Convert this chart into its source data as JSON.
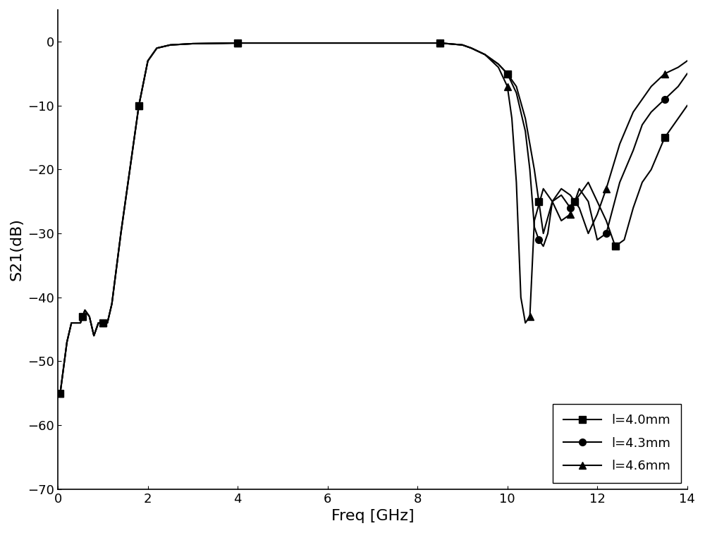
{
  "title": "",
  "xlabel": "Freq [GHz]",
  "ylabel": "S21(dB)",
  "xlim": [
    0,
    14
  ],
  "ylim": [
    -70,
    5
  ],
  "yticks": [
    0,
    -10,
    -20,
    -30,
    -40,
    -50,
    -60,
    -70
  ],
  "xticks": [
    0,
    2,
    4,
    6,
    8,
    10,
    12,
    14
  ],
  "line_color": "#000000",
  "background_color": "#ffffff",
  "series": [
    {
      "label": "l=4.0mm",
      "marker": "s",
      "freq": [
        0.05,
        0.2,
        0.3,
        0.4,
        0.5,
        0.55,
        0.6,
        0.7,
        0.8,
        0.9,
        1.0,
        1.1,
        1.2,
        1.4,
        1.6,
        1.8,
        2.0,
        2.2,
        2.5,
        3.0,
        4.0,
        5.0,
        6.0,
        7.0,
        8.0,
        8.5,
        9.0,
        9.2,
        9.5,
        9.8,
        10.0,
        10.2,
        10.4,
        10.5,
        10.6,
        10.7,
        10.8,
        11.0,
        11.2,
        11.4,
        11.5,
        11.6,
        11.8,
        12.0,
        12.2,
        12.4,
        12.6,
        12.8,
        13.0,
        13.2,
        13.5,
        13.8,
        14.0
      ],
      "s21": [
        -55,
        -47,
        -44,
        -44,
        -44,
        -43,
        -42,
        -43,
        -46,
        -44,
        -44,
        -44,
        -41,
        -30,
        -20,
        -10,
        -3,
        -1,
        -0.5,
        -0.3,
        -0.2,
        -0.2,
        -0.2,
        -0.2,
        -0.2,
        -0.2,
        -0.5,
        -1,
        -2,
        -3.5,
        -5,
        -7,
        -12,
        -16,
        -20,
        -25,
        -30,
        -25,
        -23,
        -24,
        -25,
        -24,
        -22,
        -25,
        -28,
        -32,
        -31,
        -26,
        -22,
        -20,
        -15,
        -12,
        -10
      ]
    },
    {
      "label": "l=4.3mm",
      "marker": "o",
      "freq": [
        0.05,
        0.2,
        0.3,
        0.4,
        0.5,
        0.55,
        0.6,
        0.7,
        0.8,
        0.9,
        1.0,
        1.1,
        1.2,
        1.4,
        1.6,
        1.8,
        2.0,
        2.2,
        2.5,
        3.0,
        4.0,
        5.0,
        6.0,
        7.0,
        8.0,
        8.5,
        9.0,
        9.2,
        9.5,
        9.8,
        10.0,
        10.2,
        10.4,
        10.5,
        10.6,
        10.7,
        10.8,
        10.9,
        11.0,
        11.2,
        11.4,
        11.5,
        11.6,
        11.8,
        12.0,
        12.2,
        12.5,
        12.8,
        13.0,
        13.2,
        13.5,
        13.8,
        14.0
      ],
      "s21": [
        -55,
        -47,
        -44,
        -44,
        -44,
        -43,
        -42,
        -43,
        -46,
        -44,
        -44,
        -44,
        -41,
        -30,
        -20,
        -10,
        -3,
        -1,
        -0.5,
        -0.3,
        -0.2,
        -0.2,
        -0.2,
        -0.2,
        -0.2,
        -0.2,
        -0.5,
        -1,
        -2,
        -3.5,
        -5,
        -8,
        -14,
        -20,
        -29,
        -31,
        -32,
        -30,
        -25,
        -24,
        -26,
        -25,
        -23,
        -25,
        -31,
        -30,
        -22,
        -17,
        -13,
        -11,
        -9,
        -7,
        -5
      ]
    },
    {
      "label": "l=4.6mm",
      "marker": "^",
      "freq": [
        0.05,
        0.2,
        0.3,
        0.4,
        0.5,
        0.55,
        0.6,
        0.7,
        0.8,
        0.9,
        1.0,
        1.1,
        1.2,
        1.4,
        1.6,
        1.8,
        2.0,
        2.2,
        2.5,
        3.0,
        4.0,
        5.0,
        6.0,
        7.0,
        8.0,
        8.5,
        9.0,
        9.2,
        9.5,
        9.8,
        10.0,
        10.1,
        10.2,
        10.3,
        10.4,
        10.5,
        10.6,
        10.8,
        11.0,
        11.2,
        11.4,
        11.5,
        11.6,
        11.8,
        12.0,
        12.2,
        12.5,
        12.8,
        13.0,
        13.2,
        13.5,
        13.8,
        14.0
      ],
      "s21": [
        -55,
        -47,
        -44,
        -44,
        -44,
        -43,
        -42,
        -43,
        -46,
        -44,
        -44,
        -44,
        -41,
        -30,
        -20,
        -10,
        -3,
        -1,
        -0.5,
        -0.3,
        -0.2,
        -0.2,
        -0.2,
        -0.2,
        -0.2,
        -0.2,
        -0.5,
        -1,
        -2,
        -4,
        -7,
        -12,
        -22,
        -40,
        -44,
        -43,
        -28,
        -23,
        -25,
        -28,
        -27,
        -25,
        -26,
        -30,
        -27,
        -23,
        -16,
        -11,
        -9,
        -7,
        -5,
        -4,
        -3
      ]
    }
  ],
  "legend_loc": "lower right",
  "marker_interval": 5,
  "linewidth": 1.5,
  "markersize": 7
}
